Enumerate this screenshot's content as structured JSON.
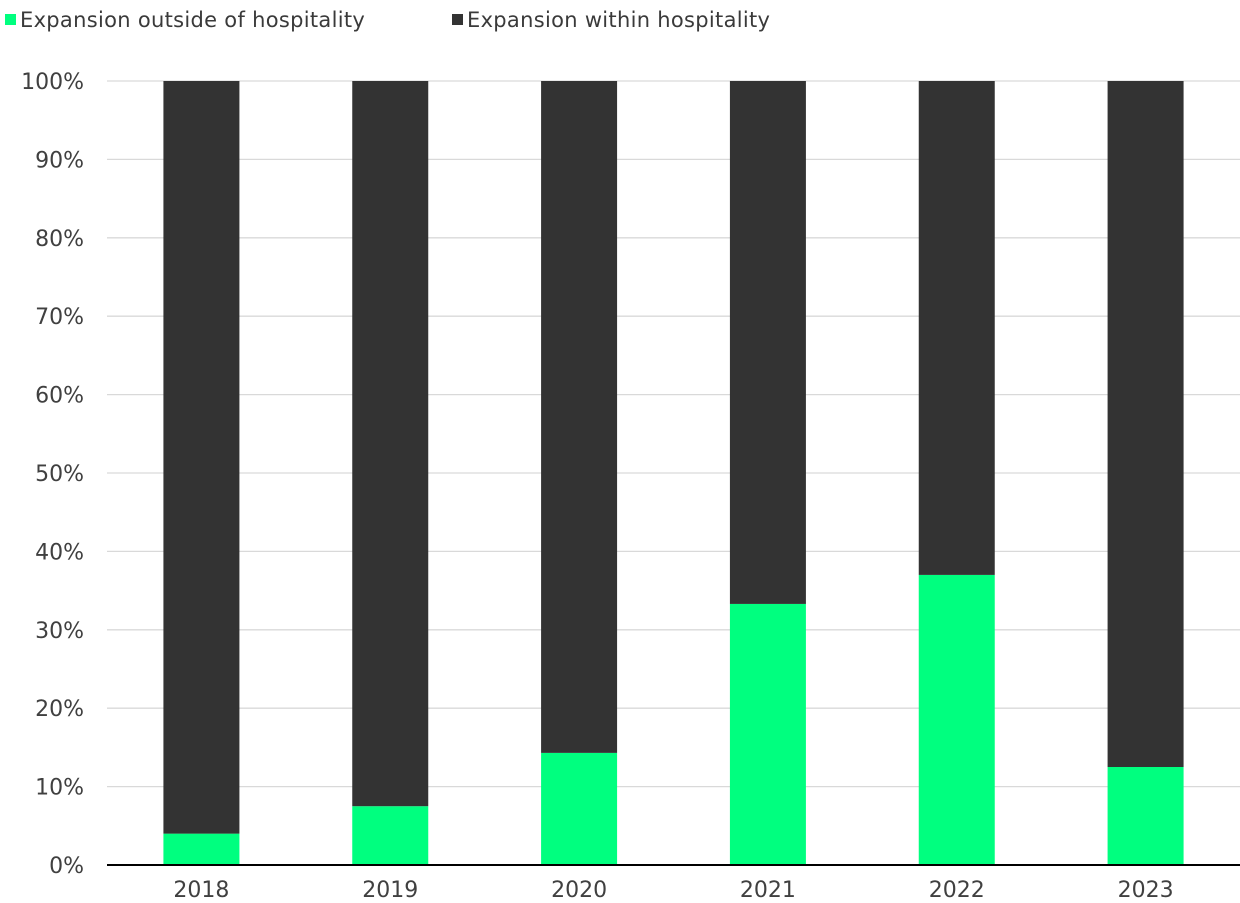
{
  "chart_data": {
    "type": "bar",
    "stacked": true,
    "categories": [
      "2018",
      "2019",
      "2020",
      "2021",
      "2022",
      "2023"
    ],
    "series": [
      {
        "name": "Expansion outside of hospitality",
        "color": "#00ff7f",
        "values": [
          4,
          7.5,
          14.3,
          33.3,
          37,
          12.5
        ]
      },
      {
        "name": "Expansion within hospitality",
        "color": "#333333",
        "values": [
          96,
          92.5,
          85.7,
          66.7,
          63,
          87.5
        ]
      }
    ],
    "ylim": [
      0,
      100
    ],
    "yticks": [
      "0%",
      "10%",
      "20%",
      "30%",
      "40%",
      "50%",
      "60%",
      "70%",
      "80%",
      "90%",
      "100%"
    ],
    "grid": true,
    "legend": "top-left",
    "title": "",
    "xlabel": "",
    "ylabel": ""
  }
}
